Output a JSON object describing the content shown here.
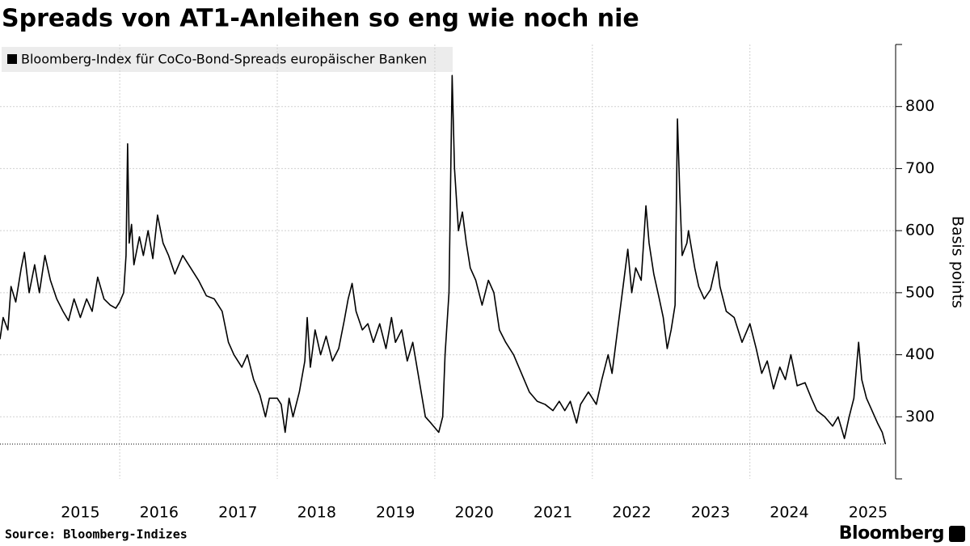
{
  "chart_data": {
    "type": "line",
    "title": "Spreads von AT1-Anleihen so eng wie noch nie",
    "y_label": "Basis points",
    "source": "Source: Bloomberg-Indizes",
    "brand": "Bloomberg",
    "xlim": [
      2014.48,
      2025.85
    ],
    "xticks": [
      2015,
      2016,
      2017,
      2018,
      2019,
      2020,
      2021,
      2022,
      2023,
      2024,
      2025
    ],
    "xgrid": [
      2016,
      2018,
      2020,
      2022,
      2024
    ],
    "ylim": [
      200,
      900
    ],
    "yticks": [
      300,
      400,
      500,
      600,
      700,
      800
    ],
    "grid": true,
    "x": [
      2014.48,
      2014.52,
      2014.58,
      2014.62,
      2014.68,
      2014.75,
      2014.79,
      2014.85,
      2014.92,
      2014.98,
      2015.05,
      2015.12,
      2015.2,
      2015.28,
      2015.35,
      2015.42,
      2015.5,
      2015.58,
      2015.65,
      2015.72,
      2015.8,
      2015.88,
      2015.95,
      2016.0,
      2016.05,
      2016.08,
      2016.1,
      2016.12,
      2016.15,
      2016.18,
      2016.25,
      2016.3,
      2016.36,
      2016.42,
      2016.48,
      2016.55,
      2016.62,
      2016.7,
      2016.8,
      2016.9,
      2017.0,
      2017.1,
      2017.2,
      2017.3,
      2017.38,
      2017.45,
      2017.55,
      2017.62,
      2017.7,
      2017.78,
      2017.85,
      2017.9,
      2018.0,
      2018.05,
      2018.1,
      2018.15,
      2018.2,
      2018.28,
      2018.35,
      2018.38,
      2018.42,
      2018.48,
      2018.55,
      2018.62,
      2018.7,
      2018.78,
      2018.85,
      2018.9,
      2018.95,
      2019.0,
      2019.08,
      2019.15,
      2019.22,
      2019.3,
      2019.38,
      2019.45,
      2019.5,
      2019.58,
      2019.65,
      2019.72,
      2019.8,
      2019.88,
      2019.95,
      2020.05,
      2020.1,
      2020.13,
      2020.18,
      2020.22,
      2020.25,
      2020.3,
      2020.35,
      2020.4,
      2020.45,
      2020.52,
      2020.6,
      2020.68,
      2020.75,
      2020.82,
      2020.9,
      2021.0,
      2021.1,
      2021.2,
      2021.3,
      2021.4,
      2021.5,
      2021.58,
      2021.65,
      2021.72,
      2021.8,
      2021.85,
      2021.95,
      2022.05,
      2022.12,
      2022.2,
      2022.25,
      2022.32,
      2022.38,
      2022.45,
      2022.5,
      2022.55,
      2022.62,
      2022.68,
      2022.72,
      2022.78,
      2022.85,
      2022.9,
      2022.95,
      2023.0,
      2023.05,
      2023.08,
      2023.11,
      2023.14,
      2023.2,
      2023.22,
      2023.3,
      2023.35,
      2023.42,
      2023.5,
      2023.58,
      2023.62,
      2023.7,
      2023.8,
      2023.9,
      2024.0,
      2024.08,
      2024.15,
      2024.22,
      2024.3,
      2024.38,
      2024.45,
      2024.52,
      2024.6,
      2024.7,
      2024.78,
      2024.85,
      2024.95,
      2025.05,
      2025.12,
      2025.2,
      2025.26,
      2025.32,
      2025.38,
      2025.42,
      2025.48,
      2025.55,
      2025.62,
      2025.68,
      2025.72
    ],
    "series": [
      {
        "name": "Bloomberg-Index für CoCo-Bond-Spreads europäischer Banken",
        "color": "#000000",
        "values": [
          425,
          460,
          440,
          510,
          485,
          540,
          565,
          500,
          545,
          500,
          560,
          520,
          490,
          470,
          455,
          490,
          460,
          490,
          470,
          525,
          490,
          480,
          475,
          485,
          500,
          560,
          740,
          580,
          610,
          545,
          590,
          560,
          600,
          555,
          625,
          580,
          560,
          530,
          560,
          540,
          520,
          495,
          490,
          470,
          420,
          400,
          380,
          400,
          360,
          335,
          300,
          330,
          330,
          320,
          275,
          330,
          300,
          340,
          390,
          460,
          380,
          440,
          400,
          430,
          390,
          410,
          455,
          490,
          515,
          470,
          440,
          450,
          420,
          450,
          410,
          460,
          420,
          440,
          390,
          420,
          360,
          300,
          290,
          275,
          300,
          400,
          500,
          850,
          700,
          600,
          630,
          580,
          540,
          520,
          480,
          520,
          500,
          440,
          420,
          400,
          370,
          340,
          325,
          320,
          310,
          325,
          310,
          325,
          290,
          320,
          340,
          320,
          360,
          400,
          370,
          440,
          500,
          570,
          500,
          540,
          520,
          640,
          580,
          530,
          490,
          460,
          410,
          440,
          480,
          780,
          660,
          560,
          580,
          600,
          540,
          510,
          490,
          505,
          550,
          510,
          470,
          460,
          420,
          450,
          410,
          370,
          390,
          345,
          380,
          360,
          400,
          350,
          355,
          330,
          310,
          300,
          285,
          300,
          265,
          300,
          330,
          420,
          360,
          330,
          310,
          290,
          275,
          256
        ]
      }
    ]
  }
}
